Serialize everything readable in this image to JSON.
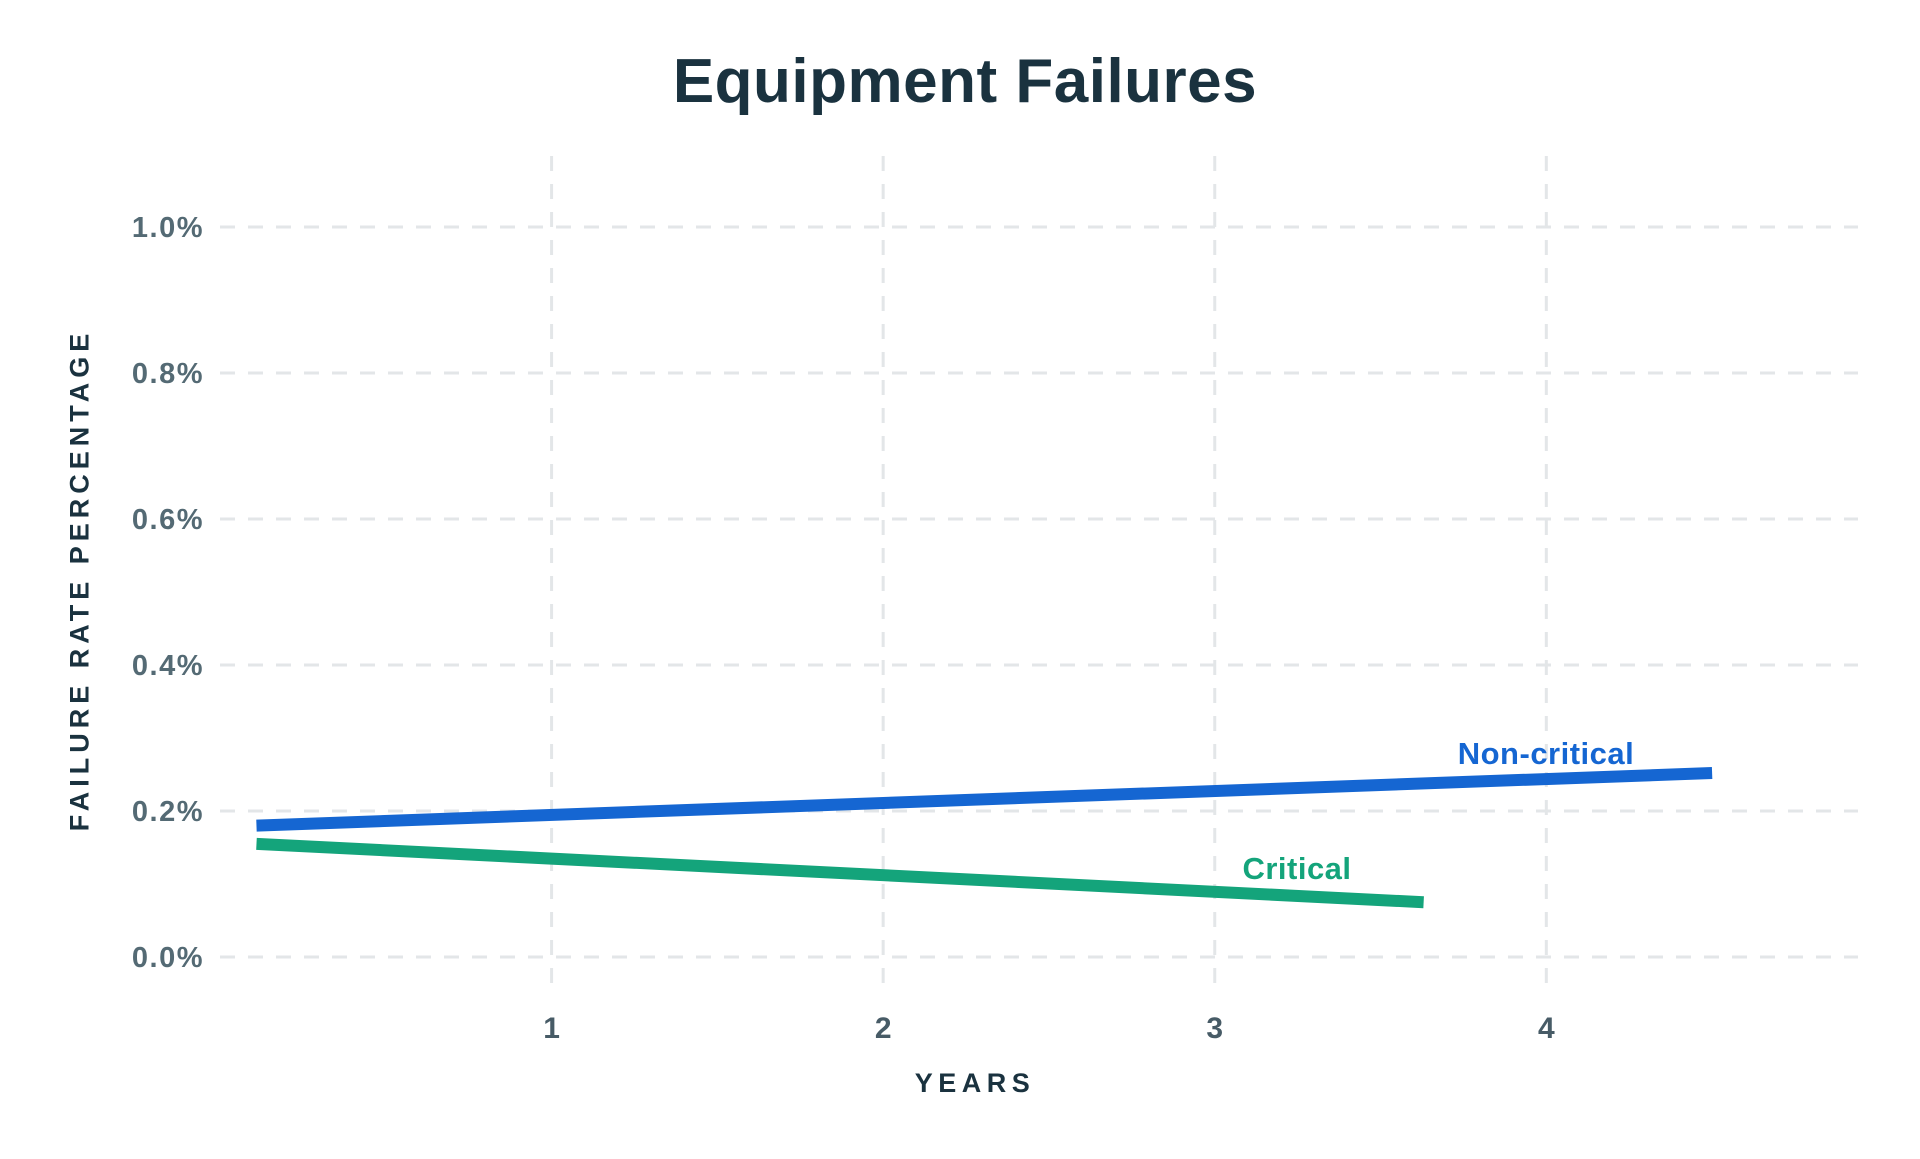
{
  "page": {
    "background": "#ffffff"
  },
  "chart_data": {
    "type": "line",
    "title": "Equipment Failures",
    "xlabel": "YEARS",
    "ylabel": "FAILURE RATE PERCENTAGE",
    "xlim": [
      0,
      4.94
    ],
    "ylim": [
      0,
      1.0
    ],
    "y_unit": "percent",
    "grid": "dashed-both-axes",
    "legend_position": "inline-labels-near-line-ends",
    "xticks": [
      {
        "value": 1,
        "label": "1"
      },
      {
        "value": 2,
        "label": "2"
      },
      {
        "value": 3,
        "label": "3"
      },
      {
        "value": 4,
        "label": "4"
      }
    ],
    "yticks": [
      {
        "value": 0.0,
        "label": "0.0%"
      },
      {
        "value": 0.2,
        "label": "0.2%"
      },
      {
        "value": 0.4,
        "label": "0.4%"
      },
      {
        "value": 0.6,
        "label": "0.6%"
      },
      {
        "value": 0.8,
        "label": "0.8%"
      },
      {
        "value": 1.0,
        "label": "1.0%"
      }
    ],
    "series": [
      {
        "name": "Non-critical",
        "color": "#1566d2",
        "points": [
          {
            "x": 0.11,
            "y": 0.18
          },
          {
            "x": 4.5,
            "y": 0.252
          }
        ]
      },
      {
        "name": "Critical",
        "color": "#14a47b",
        "points": [
          {
            "x": 0.11,
            "y": 0.155
          },
          {
            "x": 3.63,
            "y": 0.075
          }
        ]
      }
    ],
    "colors": {
      "title": "#1a323f",
      "axis_title": "#1a323f",
      "y_tick": "#546a74",
      "x_tick": "#475b66",
      "grid": "#e3e6e8"
    }
  }
}
